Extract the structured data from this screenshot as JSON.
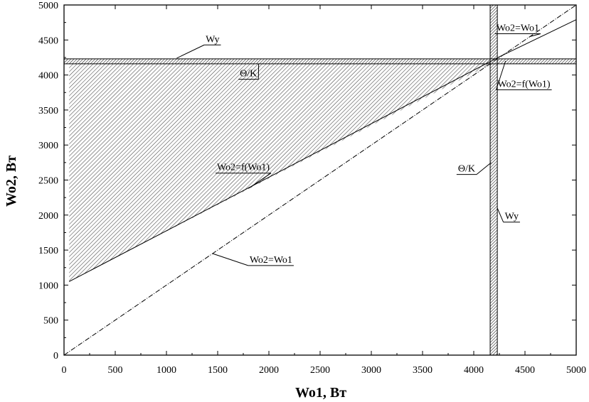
{
  "chart_data": {
    "type": "line",
    "xlabel": "Wo1, Вт",
    "ylabel": "Wo2, Вт",
    "xlim": [
      0,
      5000
    ],
    "ylim": [
      0,
      5000
    ],
    "xticks": [
      0,
      500,
      1000,
      1500,
      2000,
      2500,
      3000,
      3500,
      4000,
      4500,
      5000
    ],
    "yticks": [
      0,
      500,
      1000,
      1500,
      2000,
      2500,
      3000,
      3500,
      4000,
      4500,
      5000
    ],
    "grid": false,
    "series": [
      {
        "name": "Wo2=f(Wo1)",
        "x": [
          50,
          4250,
          5000
        ],
        "y": [
          1050,
          4260,
          4790
        ]
      },
      {
        "name": "Wo2=Wo1",
        "x": [
          0,
          5000
        ],
        "y": [
          0,
          5000
        ]
      }
    ],
    "thresholds": {
      "wy": 4230,
      "theta_k": 4160
    },
    "shaded_region": {
      "x": [
        50,
        4170,
        4170,
        50
      ],
      "y": [
        1050,
        4160,
        4230,
        4230
      ]
    },
    "annotations": [
      {
        "label": "Wy",
        "x": 1450,
        "y": 4470,
        "ax": 1100,
        "ay": 4240
      },
      {
        "label": "Θ/K",
        "x": 1800,
        "y": 3980,
        "ax": 1900,
        "ay": 4160
      },
      {
        "label": "Wo2=f(Wo1)",
        "x": 1750,
        "y": 2640,
        "ax": 1800,
        "ay": 2380
      },
      {
        "label": "Wo2=Wo1",
        "x": 2020,
        "y": 1320,
        "ax": 1450,
        "ay": 1450
      },
      {
        "label": "Wo2=Wo1",
        "x": 4430,
        "y": 4630,
        "ax": 4550,
        "ay": 4550
      },
      {
        "label": "Wo2=f(Wo1)",
        "x": 4490,
        "y": 3830,
        "ax": 4310,
        "ay": 4200
      },
      {
        "label": "Θ/K",
        "x": 3930,
        "y": 2620,
        "ax": 4170,
        "ay": 2750
      },
      {
        "label": "Wy",
        "x": 4370,
        "y": 1940,
        "ax": 4230,
        "ay": 2100
      }
    ]
  }
}
